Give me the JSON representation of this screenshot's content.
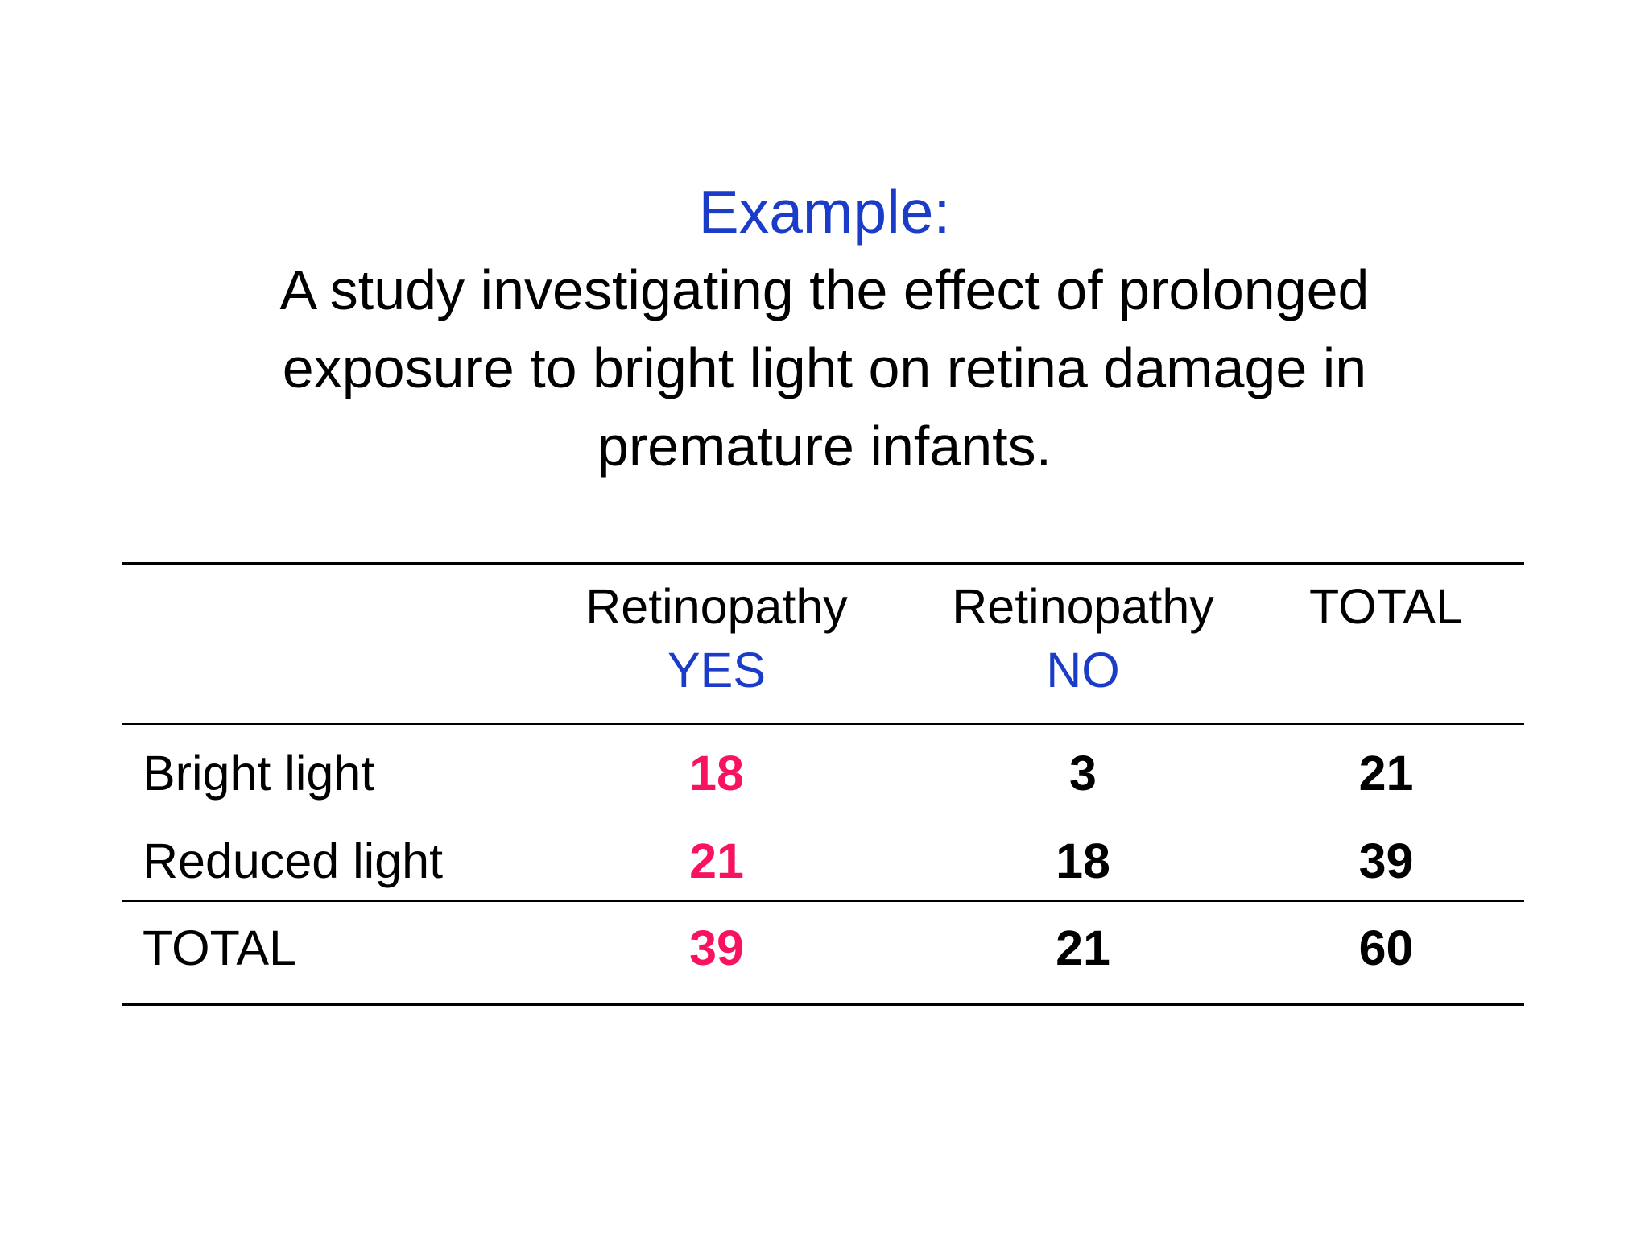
{
  "slide": {
    "title": "Example:",
    "subtitle_lines": [
      "A study investigating the effect of prolonged",
      "exposure to bright light on retina damage in",
      "premature infants."
    ]
  },
  "table": {
    "col_headers": [
      {
        "line1": "",
        "line2": ""
      },
      {
        "line1": "Retinopathy",
        "line2": "YES"
      },
      {
        "line1": "Retinopathy",
        "line2": "NO"
      },
      {
        "line1": "TOTAL",
        "line2": ""
      }
    ],
    "rows": [
      {
        "label": "Bright light",
        "yes": "18",
        "no": "3",
        "total": "21"
      },
      {
        "label": "Reduced light",
        "yes": "21",
        "no": "18",
        "total": "39"
      },
      {
        "label": "TOTAL",
        "yes": "39",
        "no": "21",
        "total": "60"
      }
    ]
  },
  "chart_data": {
    "type": "table",
    "title": "A study investigating the effect of prolonged exposure to bright light on retina damage in premature infants.",
    "columns": [
      "",
      "Retinopathy YES",
      "Retinopathy NO",
      "TOTAL"
    ],
    "rows": [
      [
        "Bright light",
        18,
        3,
        21
      ],
      [
        "Reduced light",
        21,
        18,
        39
      ],
      [
        "TOTAL",
        39,
        21,
        60
      ]
    ]
  },
  "colors": {
    "accent_blue": "#1b3cc8",
    "accent_pink": "#f81360",
    "text_black": "#000000",
    "background": "#ffffff"
  }
}
